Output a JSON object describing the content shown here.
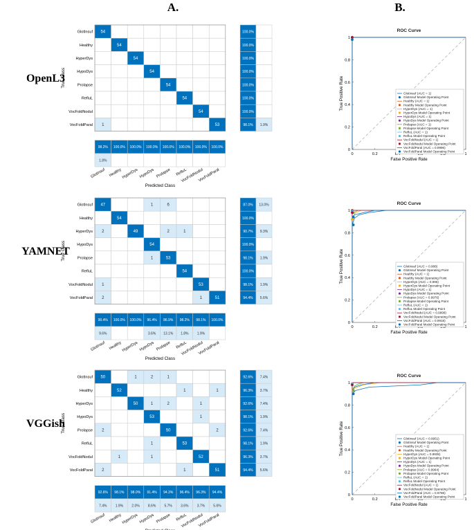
{
  "headers": {
    "left": "A.",
    "right": "B."
  },
  "axis_text": {
    "true_class": "True Class",
    "predicted_class": "Predicted Class",
    "roc_title": "ROC Curve",
    "roc_xlabel": "False Positive Rate",
    "roc_ylabel": "True Positive Rate"
  },
  "roc_ticks": [
    "0",
    "0.2",
    "0.4",
    "0.6",
    "0.8",
    "1"
  ],
  "legend_suffix": " Model Operating Point",
  "colors": {
    "dark": "#0072BD",
    "light": "#D6EAF8",
    "curves": [
      "#0072BD",
      "#D95319",
      "#EDB120",
      "#7E2F8E",
      "#77AC30",
      "#4DBEEE",
      "#A2142F",
      "#0072BD"
    ]
  },
  "chart_data": [
    {
      "type": "heatmap",
      "title": "OpenL3",
      "classes": [
        "GlotInsuf",
        "Healthy",
        "HyperDys",
        "HypoDys",
        "Prolapse",
        "RefluL",
        "VocFoldNodul",
        "VocFoldParal"
      ],
      "matrix": [
        [
          54,
          0,
          0,
          0,
          0,
          0,
          0,
          0
        ],
        [
          0,
          54,
          0,
          0,
          0,
          0,
          0,
          0
        ],
        [
          0,
          0,
          54,
          0,
          0,
          0,
          0,
          0
        ],
        [
          0,
          0,
          0,
          54,
          0,
          0,
          0,
          0
        ],
        [
          0,
          0,
          0,
          0,
          54,
          0,
          0,
          0
        ],
        [
          0,
          0,
          0,
          0,
          0,
          54,
          0,
          0
        ],
        [
          0,
          0,
          0,
          0,
          0,
          0,
          54,
          0
        ],
        [
          1,
          0,
          0,
          0,
          0,
          0,
          0,
          53
        ]
      ],
      "row_summary": [
        [
          "100.0%",
          ""
        ],
        [
          "100.0%",
          ""
        ],
        [
          "100.0%",
          ""
        ],
        [
          "100.0%",
          ""
        ],
        [
          "100.0%",
          ""
        ],
        [
          "100.0%",
          ""
        ],
        [
          "100.0%",
          ""
        ],
        [
          "98.1%",
          "1.9%"
        ]
      ],
      "col_summary": [
        [
          "98.2%",
          "1.8%"
        ],
        [
          "100.0%",
          ""
        ],
        [
          "100.0%",
          ""
        ],
        [
          "100.0%",
          ""
        ],
        [
          "100.0%",
          ""
        ],
        [
          "100.0%",
          ""
        ],
        [
          "100.0%",
          ""
        ],
        [
          "100.0%",
          ""
        ]
      ],
      "roc": {
        "auc_labels": [
          "GlotInsuf (AUC = 1)",
          "Healthy (AUC = 1)",
          "HyperDys (AUC = 1)",
          "HypoDys (AUC = 1)",
          "Prolapse (AUC = 1)",
          "RefluL (AUC = 1)",
          "VocFoldNodul (AUC = 1)",
          "VocFoldParal (AUC = 0.9996)"
        ],
        "curves": [
          [
            [
              0,
              0
            ],
            [
              0,
              1
            ],
            [
              1,
              1
            ]
          ],
          [
            [
              0,
              0
            ],
            [
              0,
              1
            ],
            [
              1,
              1
            ]
          ],
          [
            [
              0,
              0
            ],
            [
              0,
              1
            ],
            [
              1,
              1
            ]
          ],
          [
            [
              0,
              0
            ],
            [
              0,
              1
            ],
            [
              1,
              1
            ]
          ],
          [
            [
              0,
              0
            ],
            [
              0,
              1
            ],
            [
              1,
              1
            ]
          ],
          [
            [
              0,
              0
            ],
            [
              0,
              1
            ],
            [
              1,
              1
            ]
          ],
          [
            [
              0,
              0
            ],
            [
              0,
              1
            ],
            [
              1,
              1
            ]
          ],
          [
            [
              0,
              0
            ],
            [
              0,
              0.98
            ],
            [
              0.003,
              1
            ],
            [
              1,
              1
            ]
          ]
        ],
        "points": [
          [
            0,
            1
          ],
          [
            0,
            1
          ],
          [
            0,
            1
          ],
          [
            0,
            1
          ],
          [
            0,
            1
          ],
          [
            0,
            1
          ],
          [
            0,
            1
          ],
          [
            0,
            0.98
          ]
        ]
      }
    },
    {
      "type": "heatmap",
      "title": "YAMNET",
      "classes": [
        "GlotInsuf",
        "Healthy",
        "HyperDys",
        "HypoDys",
        "Prolapse",
        "RefluL",
        "VocFoldNodul",
        "VocFoldParal"
      ],
      "matrix": [
        [
          47,
          0,
          0,
          1,
          6,
          0,
          0,
          0
        ],
        [
          0,
          54,
          0,
          0,
          0,
          0,
          0,
          0
        ],
        [
          2,
          0,
          49,
          0,
          2,
          1,
          0,
          0
        ],
        [
          0,
          0,
          0,
          54,
          0,
          0,
          0,
          0
        ],
        [
          0,
          0,
          0,
          1,
          53,
          0,
          0,
          0
        ],
        [
          0,
          0,
          0,
          0,
          0,
          54,
          0,
          0
        ],
        [
          1,
          0,
          0,
          0,
          0,
          0,
          53,
          0
        ],
        [
          2,
          0,
          0,
          0,
          0,
          0,
          1,
          51
        ]
      ],
      "row_summary": [
        [
          "87.0%",
          "13.0%"
        ],
        [
          "100.0%",
          ""
        ],
        [
          "90.7%",
          "9.3%"
        ],
        [
          "100.0%",
          ""
        ],
        [
          "98.1%",
          "1.9%"
        ],
        [
          "100.0%",
          ""
        ],
        [
          "98.1%",
          "1.9%"
        ],
        [
          "94.4%",
          "5.6%"
        ]
      ],
      "col_summary": [
        [
          "90.4%",
          "9.6%"
        ],
        [
          "100.0%",
          ""
        ],
        [
          "100.0%",
          ""
        ],
        [
          "96.4%",
          "3.6%"
        ],
        [
          "86.9%",
          "13.1%"
        ],
        [
          "98.2%",
          "1.8%"
        ],
        [
          "98.1%",
          "1.9%"
        ],
        [
          "100.0%",
          ""
        ]
      ],
      "roc": {
        "auc_labels": [
          "GlotInsuf (AUC = 0.988)",
          "Healthy (AUC = 1)",
          "HyperDys (AUC = 0.996)",
          "HypoDys (AUC = 1)",
          "Prolapse (AUC = 0.9976)",
          "RefluL (AUC = 1)",
          "VocFoldNodul (AUC = 0.9998)",
          "VocFoldParal (AUC = 0.9918)"
        ],
        "curves": [
          [
            [
              0,
              0
            ],
            [
              0,
              0.87
            ],
            [
              0.02,
              0.93
            ],
            [
              0.06,
              0.96
            ],
            [
              0.15,
              0.98
            ],
            [
              0.3,
              1
            ],
            [
              1,
              1
            ]
          ],
          [
            [
              0,
              0
            ],
            [
              0,
              1
            ],
            [
              1,
              1
            ]
          ],
          [
            [
              0,
              0
            ],
            [
              0,
              0.9
            ],
            [
              0.01,
              0.95
            ],
            [
              0.03,
              0.98
            ],
            [
              0.08,
              1
            ],
            [
              1,
              1
            ]
          ],
          [
            [
              0,
              0
            ],
            [
              0,
              1
            ],
            [
              1,
              1
            ]
          ],
          [
            [
              0,
              0
            ],
            [
              0,
              0.98
            ],
            [
              0.03,
              0.99
            ],
            [
              0.05,
              1
            ],
            [
              1,
              1
            ]
          ],
          [
            [
              0,
              0
            ],
            [
              0,
              1
            ],
            [
              1,
              1
            ]
          ],
          [
            [
              0,
              0
            ],
            [
              0,
              0.98
            ],
            [
              0.002,
              1
            ],
            [
              1,
              1
            ]
          ],
          [
            [
              0,
              0
            ],
            [
              0,
              0.94
            ],
            [
              0.02,
              0.96
            ],
            [
              0.1,
              0.98
            ],
            [
              0.2,
              1
            ],
            [
              1,
              1
            ]
          ]
        ],
        "points": [
          [
            0.01,
            0.87
          ],
          [
            0,
            1
          ],
          [
            0,
            0.92
          ],
          [
            0,
            0.995
          ],
          [
            0.01,
            0.98
          ],
          [
            0,
            0.99
          ],
          [
            0,
            0.98
          ],
          [
            0.01,
            0.94
          ]
        ]
      }
    },
    {
      "type": "heatmap",
      "title": "VGGish",
      "classes": [
        "GlotInsuf",
        "Healthy",
        "HyperDys",
        "HypoDys",
        "Prolapse",
        "RefluL",
        "VocFoldNodul",
        "VocFoldParal"
      ],
      "matrix": [
        [
          50,
          0,
          1,
          2,
          1,
          0,
          0,
          0
        ],
        [
          0,
          52,
          0,
          0,
          0,
          1,
          0,
          1
        ],
        [
          0,
          0,
          50,
          1,
          2,
          0,
          1,
          0
        ],
        [
          0,
          0,
          0,
          53,
          0,
          0,
          1,
          0
        ],
        [
          2,
          0,
          0,
          0,
          50,
          0,
          0,
          2
        ],
        [
          0,
          0,
          0,
          1,
          0,
          53,
          0,
          0
        ],
        [
          0,
          1,
          0,
          1,
          0,
          0,
          52,
          0
        ],
        [
          2,
          0,
          0,
          0,
          0,
          1,
          0,
          51
        ]
      ],
      "row_summary": [
        [
          "92.6%",
          "7.4%"
        ],
        [
          "96.3%",
          "3.7%"
        ],
        [
          "92.6%",
          "7.4%"
        ],
        [
          "98.1%",
          "1.9%"
        ],
        [
          "92.6%",
          "7.4%"
        ],
        [
          "98.1%",
          "1.9%"
        ],
        [
          "96.3%",
          "3.7%"
        ],
        [
          "94.4%",
          "5.6%"
        ]
      ],
      "col_summary": [
        [
          "92.6%",
          "7.4%"
        ],
        [
          "98.1%",
          "1.9%"
        ],
        [
          "98.0%",
          "2.0%"
        ],
        [
          "91.4%",
          "8.6%"
        ],
        [
          "94.3%",
          "5.7%"
        ],
        [
          "96.4%",
          "3.6%"
        ],
        [
          "96.3%",
          "3.7%"
        ],
        [
          "94.4%",
          "5.6%"
        ]
      ],
      "roc": {
        "auc_labels": [
          "GlotInsuf (AUC = 0.9951)",
          "Healthy (AUC = 1)",
          "HyperDys (AUC = 0.9935)",
          "HypoDys (AUC = 1)",
          "Prolapse (AUC = 0.9964)",
          "RefluL (AUC = 1)",
          "VocFoldNodul (AUC = 1)",
          "VocFoldParal (AUC = 0.9786)"
        ],
        "curves": [
          [
            [
              0,
              0
            ],
            [
              0,
              0.93
            ],
            [
              0.02,
              0.96
            ],
            [
              0.08,
              0.98
            ],
            [
              0.2,
              1
            ],
            [
              1,
              1
            ]
          ],
          [
            [
              0,
              0
            ],
            [
              0,
              1
            ],
            [
              1,
              1
            ]
          ],
          [
            [
              0,
              0
            ],
            [
              0,
              0.92
            ],
            [
              0.02,
              0.95
            ],
            [
              0.1,
              0.98
            ],
            [
              0.25,
              1
            ],
            [
              1,
              1
            ]
          ],
          [
            [
              0,
              0
            ],
            [
              0,
              1
            ],
            [
              1,
              1
            ]
          ],
          [
            [
              0,
              0
            ],
            [
              0,
              0.93
            ],
            [
              0.02,
              0.97
            ],
            [
              0.06,
              0.99
            ],
            [
              0.1,
              1
            ],
            [
              1,
              1
            ]
          ],
          [
            [
              0,
              0
            ],
            [
              0,
              1
            ],
            [
              1,
              1
            ]
          ],
          [
            [
              0,
              0
            ],
            [
              0,
              1
            ],
            [
              1,
              1
            ]
          ],
          [
            [
              0,
              0
            ],
            [
              0,
              0.9
            ],
            [
              0.03,
              0.93
            ],
            [
              0.15,
              0.96
            ],
            [
              0.6,
              0.98
            ],
            [
              0.75,
              1
            ],
            [
              1,
              1
            ]
          ]
        ],
        "points": [
          [
            0.01,
            0.93
          ],
          [
            0,
            0.99
          ],
          [
            0.01,
            0.93
          ],
          [
            0,
            0.99
          ],
          [
            0.01,
            0.93
          ],
          [
            0,
            0.99
          ],
          [
            0,
            0.98
          ],
          [
            0.01,
            0.9
          ]
        ]
      }
    }
  ]
}
